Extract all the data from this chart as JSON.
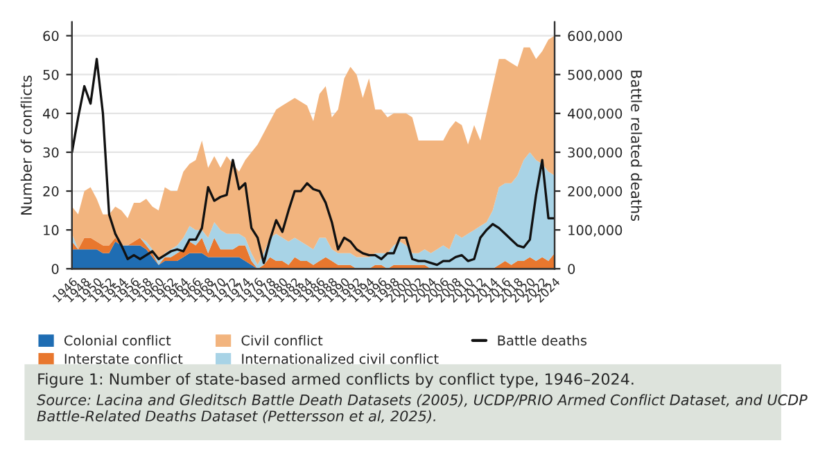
{
  "chart_data": {
    "type": "area",
    "stacked": true,
    "title": "Figure 1: Number of state-based armed conflicts by conflict type, 1946–2024.",
    "annotations": [
      "Source: Lacina and Gleditsch Battle Death Datasets (2005), UCDP/PRIO Armed Conflict Dataset, and UCDP Battle-Related Deaths Dataset (Pettersson et al, 2025)."
    ],
    "ylabel": "Number of conflicts",
    "y2label": "Battle related deaths",
    "x": [
      1946,
      1947,
      1948,
      1949,
      1950,
      1951,
      1952,
      1953,
      1954,
      1955,
      1956,
      1957,
      1958,
      1959,
      1960,
      1961,
      1962,
      1963,
      1964,
      1965,
      1966,
      1967,
      1968,
      1969,
      1970,
      1971,
      1972,
      1973,
      1974,
      1975,
      1976,
      1977,
      1978,
      1979,
      1980,
      1981,
      1982,
      1983,
      1984,
      1985,
      1986,
      1987,
      1988,
      1989,
      1990,
      1991,
      1992,
      1993,
      1994,
      1995,
      1996,
      1997,
      1998,
      1999,
      2000,
      2001,
      2002,
      2003,
      2004,
      2005,
      2006,
      2007,
      2008,
      2009,
      2010,
      2011,
      2012,
      2013,
      2014,
      2015,
      2016,
      2017,
      2018,
      2019,
      2020,
      2021,
      2022,
      2023,
      2024
    ],
    "series": [
      {
        "name": "Colonial conflict",
        "color": "#1f6db3",
        "values": [
          5,
          5,
          5,
          5,
          5,
          4,
          4,
          7,
          6,
          6,
          6,
          6,
          5,
          3,
          1,
          2,
          2,
          2,
          3,
          4,
          4,
          4,
          3,
          3,
          3,
          3,
          3,
          3,
          2,
          1,
          0,
          0,
          0,
          0,
          0,
          0,
          0,
          0,
          0,
          0,
          0,
          0,
          0,
          0,
          0,
          0,
          0,
          0,
          0,
          0,
          0,
          0,
          0,
          0,
          0,
          0,
          0,
          0,
          0,
          0,
          0,
          0,
          0,
          0,
          0,
          0,
          0,
          0,
          0,
          0,
          0,
          0,
          0,
          0,
          0,
          0,
          0,
          0,
          0
        ]
      },
      {
        "name": "Interstate conflict",
        "color": "#e8772e",
        "values": [
          2,
          0,
          3,
          3,
          2,
          2,
          2,
          1,
          0,
          0,
          1,
          2,
          1,
          1,
          0,
          1,
          1,
          2,
          2,
          3,
          2,
          4,
          1,
          5,
          2,
          2,
          2,
          3,
          4,
          1,
          0,
          1,
          3,
          2,
          2,
          1,
          3,
          2,
          2,
          1,
          2,
          3,
          2,
          1,
          1,
          1,
          0,
          0,
          0,
          1,
          1,
          0,
          1,
          1,
          1,
          1,
          1,
          1,
          0,
          0,
          0,
          0,
          0,
          0,
          0,
          0,
          0,
          0,
          0,
          1,
          2,
          1,
          2,
          2,
          3,
          2,
          3,
          2,
          4
        ]
      },
      {
        "name": "Internationalized civil conflict",
        "color": "#a8d3e6",
        "values": [
          2,
          0,
          0,
          0,
          0,
          0,
          0,
          0,
          0,
          0,
          0,
          0,
          1,
          1,
          1,
          1,
          2,
          2,
          3,
          4,
          4,
          2,
          4,
          4,
          5,
          4,
          4,
          3,
          2,
          2,
          1,
          3,
          5,
          7,
          6,
          6,
          5,
          5,
          4,
          4,
          6,
          5,
          3,
          3,
          3,
          3,
          3,
          3,
          3,
          3,
          3,
          4,
          5,
          6,
          5,
          3,
          3,
          4,
          4,
          5,
          6,
          5,
          9,
          8,
          9,
          10,
          11,
          12,
          15,
          20,
          20,
          21,
          22,
          26,
          27,
          26,
          24,
          23,
          20
        ]
      },
      {
        "name": "Civil conflict",
        "color": "#f2b47e",
        "values": [
          7,
          9,
          12,
          13,
          11,
          8,
          8,
          8,
          9,
          7,
          10,
          9,
          11,
          11,
          13,
          17,
          15,
          14,
          17,
          16,
          18,
          23,
          18,
          17,
          16,
          20,
          18,
          16,
          20,
          26,
          31,
          31,
          30,
          32,
          34,
          36,
          36,
          36,
          36,
          33,
          37,
          39,
          34,
          37,
          45,
          48,
          47,
          41,
          46,
          37,
          37,
          35,
          34,
          33,
          34,
          35,
          29,
          28,
          29,
          28,
          27,
          31,
          29,
          29,
          23,
          27,
          22,
          28,
          32,
          33,
          32,
          31,
          28,
          29,
          27,
          26,
          29,
          34,
          36
        ]
      },
      {
        "name": "Battle deaths",
        "type": "line",
        "axis": "y2",
        "color": "#111111",
        "values": [
          300000,
          390000,
          470000,
          425000,
          540000,
          400000,
          140000,
          90000,
          60000,
          25000,
          35000,
          25000,
          35000,
          45000,
          25000,
          35000,
          45000,
          50000,
          45000,
          75000,
          75000,
          105000,
          210000,
          175000,
          185000,
          190000,
          280000,
          205000,
          220000,
          105000,
          80000,
          15000,
          75000,
          125000,
          95000,
          150000,
          200000,
          200000,
          220000,
          205000,
          200000,
          170000,
          120000,
          50000,
          80000,
          70000,
          50000,
          40000,
          35000,
          35000,
          25000,
          40000,
          40000,
          80000,
          80000,
          25000,
          20000,
          20000,
          15000,
          10000,
          20000,
          20000,
          30000,
          35000,
          20000,
          25000,
          80000,
          100000,
          115000,
          105000,
          90000,
          75000,
          60000,
          55000,
          75000,
          190000,
          280000,
          130000,
          130000
        ]
      }
    ],
    "xlim": [
      1946,
      2024
    ],
    "xticks": [
      1946,
      1948,
      1950,
      1952,
      1954,
      1956,
      1958,
      1960,
      1962,
      1964,
      1966,
      1968,
      1970,
      1972,
      1974,
      1976,
      1978,
      1980,
      1982,
      1984,
      1986,
      1988,
      1990,
      1992,
      1994,
      1996,
      1998,
      2000,
      2002,
      2004,
      2006,
      2008,
      2010,
      2012,
      2014,
      2016,
      2018,
      2020,
      2022,
      2024
    ],
    "ylim": [
      0,
      63.5
    ],
    "yticks": [
      0,
      10,
      20,
      30,
      40,
      50,
      60
    ],
    "y2lim": [
      0,
      635000
    ],
    "y2ticks": [
      0,
      {
        "value": 100000,
        "label": "100,000"
      },
      {
        "value": 200000,
        "label": "200,000"
      },
      {
        "value": 300000,
        "label": "300,000"
      },
      {
        "value": 400000,
        "label": "400,000"
      },
      {
        "value": 500000,
        "label": "500,000"
      },
      {
        "value": 600000,
        "label": "600,000"
      }
    ],
    "grid": "y",
    "legend": "bottom"
  }
}
